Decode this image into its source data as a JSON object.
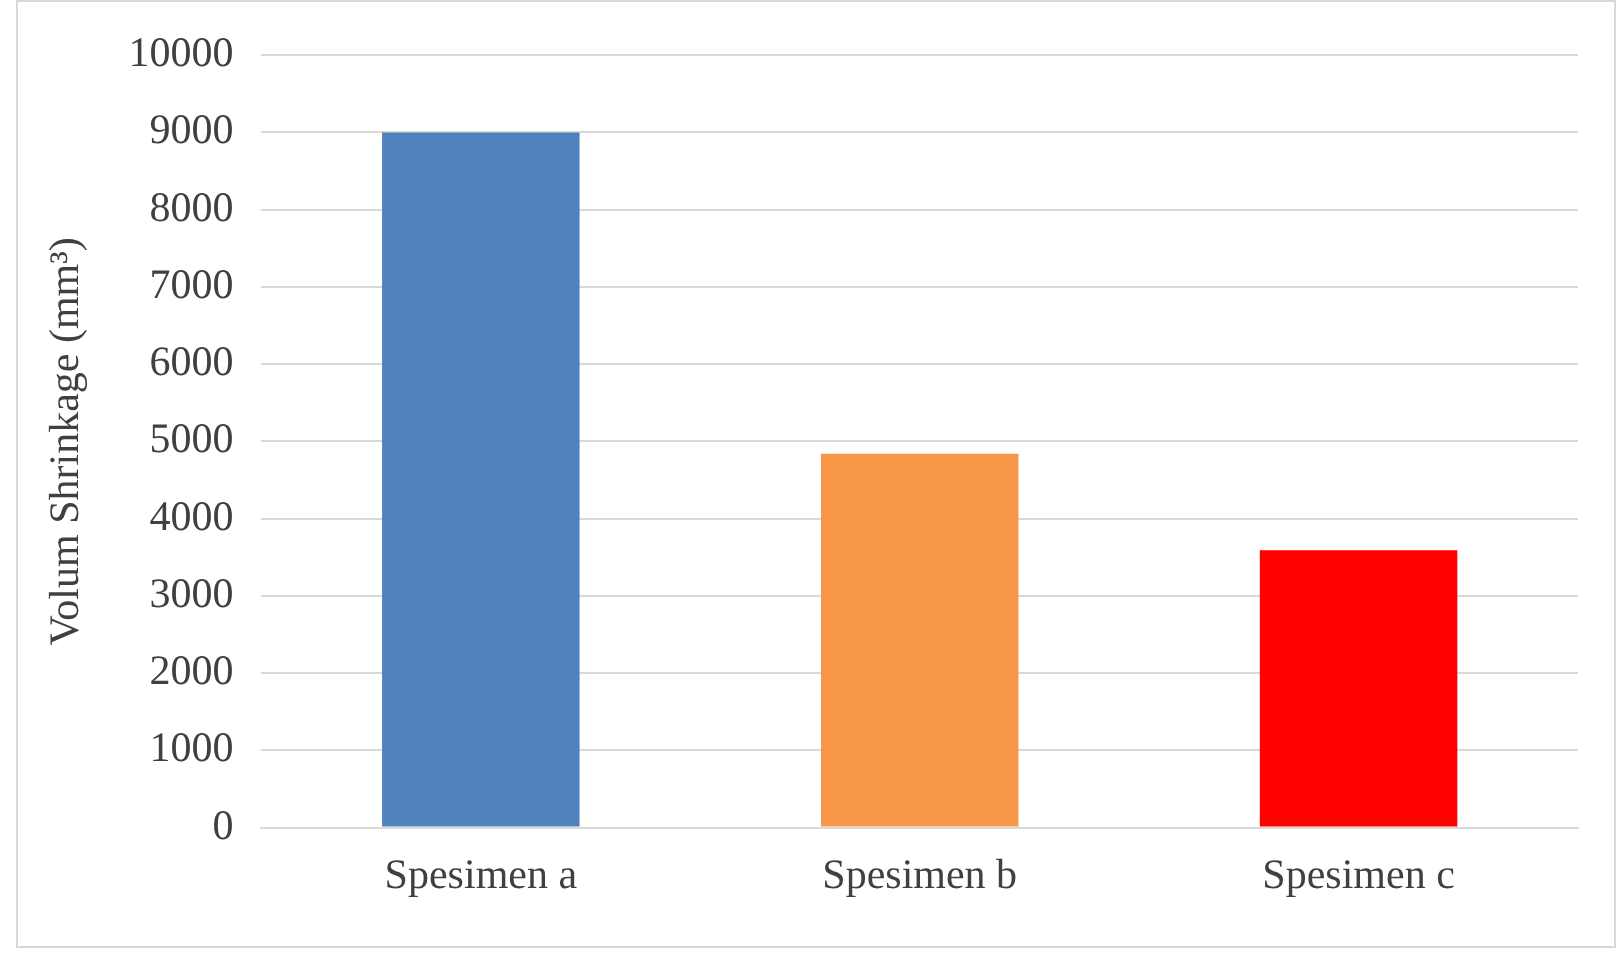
{
  "chart_data": {
    "type": "bar",
    "ylabel": "Volum Shrinkage (mm³)",
    "categories": [
      "Spesimen a",
      "Spesimen b",
      "Spesimen c"
    ],
    "values": [
      9000,
      4840,
      3590
    ],
    "colors": [
      "#4f81bd",
      "#f79646",
      "#ff0000"
    ],
    "ylim": [
      0,
      10000
    ],
    "yticks": [
      0,
      1000,
      2000,
      3000,
      4000,
      5000,
      6000,
      7000,
      8000,
      9000,
      10000
    ],
    "grid": "y",
    "legend": false
  }
}
